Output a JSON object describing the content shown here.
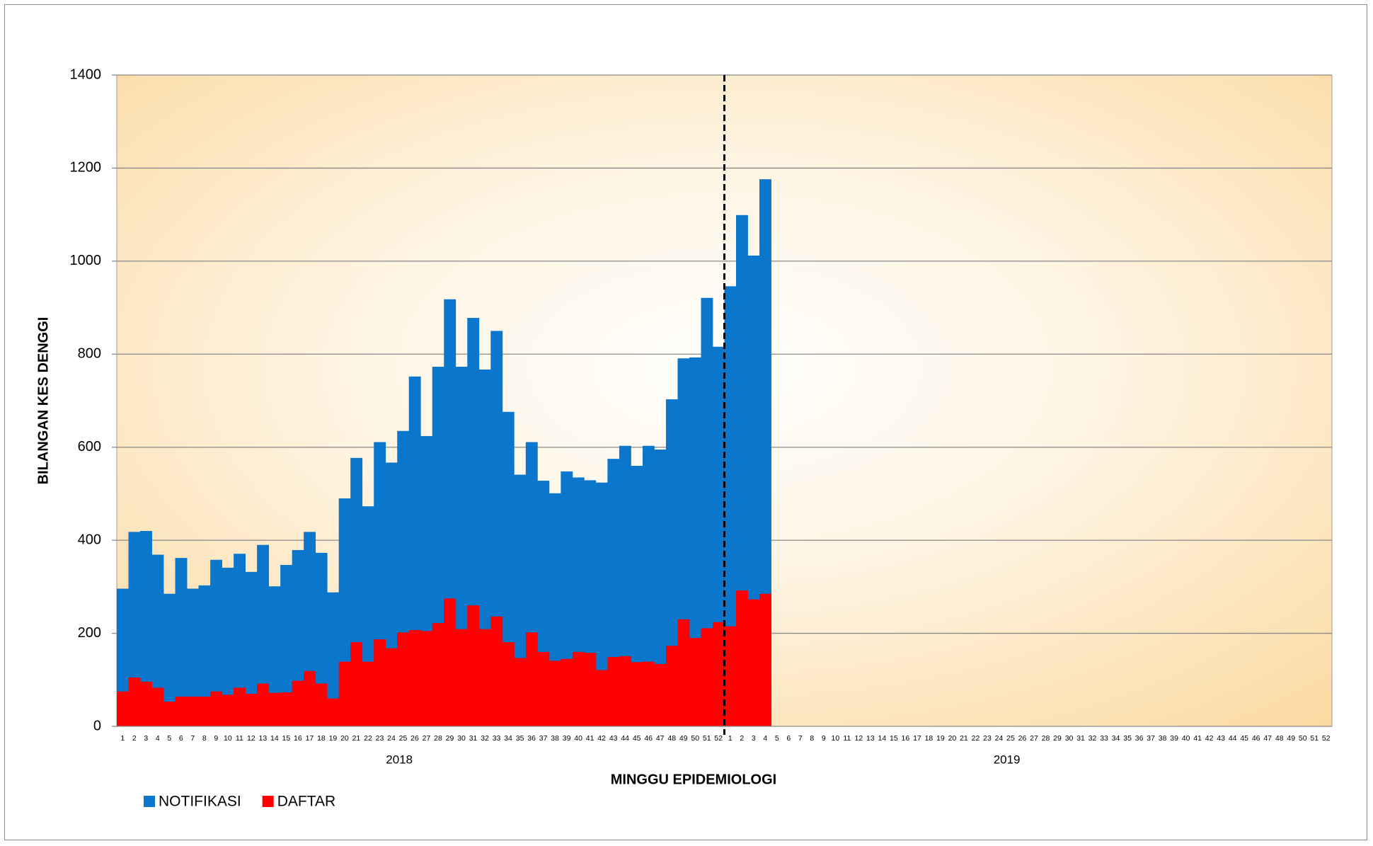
{
  "chart_data": {
    "type": "bar",
    "ylabel": "BILANGAN KES DENGGI",
    "xlabel": "MINGGU EPIDEMIOLOGI",
    "x_groups": [
      "2018",
      "2019"
    ],
    "categories": [
      "1",
      "2",
      "3",
      "4",
      "5",
      "6",
      "7",
      "8",
      "9",
      "10",
      "11",
      "12",
      "13",
      "14",
      "15",
      "16",
      "17",
      "18",
      "19",
      "20",
      "21",
      "22",
      "23",
      "24",
      "25",
      "26",
      "27",
      "28",
      "29",
      "30",
      "31",
      "32",
      "33",
      "34",
      "35",
      "36",
      "37",
      "38",
      "39",
      "40",
      "41",
      "42",
      "43",
      "44",
      "45",
      "46",
      "47",
      "48",
      "49",
      "50",
      "51",
      "52",
      "1",
      "2",
      "3",
      "4",
      "5",
      "6",
      "7",
      "8",
      "9",
      "10",
      "11",
      "12",
      "13",
      "14",
      "15",
      "16",
      "17",
      "18",
      "19",
      "20",
      "21",
      "22",
      "23",
      "24",
      "25",
      "26",
      "27",
      "28",
      "29",
      "30",
      "31",
      "32",
      "33",
      "34",
      "35",
      "36",
      "37",
      "38",
      "39",
      "40",
      "41",
      "42",
      "43",
      "44",
      "45",
      "46",
      "47",
      "48",
      "49",
      "50",
      "51",
      "52"
    ],
    "series": [
      {
        "name": "NOTIFIKASI",
        "color": "#0a77cc",
        "values": [
          296,
          418,
          420,
          369,
          285,
          362,
          296,
          303,
          358,
          341,
          371,
          332,
          390,
          301,
          347,
          379,
          418,
          373,
          288,
          490,
          577,
          473,
          611,
          567,
          635,
          752,
          624,
          773,
          918,
          773,
          878,
          767,
          850,
          676,
          541,
          611,
          528,
          501,
          548,
          535,
          529,
          524,
          575,
          603,
          560,
          603,
          595,
          703,
          791,
          793,
          921,
          816,
          946,
          1099,
          1012,
          1176,
          null,
          null,
          null,
          null,
          null,
          null,
          null,
          null,
          null,
          null,
          null,
          null,
          null,
          null,
          null,
          null,
          null,
          null,
          null,
          null,
          null,
          null,
          null,
          null,
          null,
          null,
          null,
          null,
          null,
          null,
          null,
          null,
          null,
          null,
          null,
          null,
          null,
          null,
          null,
          null,
          null,
          null,
          null,
          null,
          null,
          null,
          null,
          null
        ]
      },
      {
        "name": "DAFTAR",
        "color": "#ff0000",
        "values": [
          75,
          105,
          96,
          83,
          53,
          64,
          64,
          64,
          75,
          68,
          83,
          70,
          92,
          72,
          73,
          98,
          119,
          92,
          60,
          139,
          181,
          139,
          187,
          168,
          202,
          207,
          205,
          222,
          275,
          209,
          260,
          209,
          236,
          181,
          147,
          202,
          160,
          141,
          145,
          160,
          158,
          121,
          149,
          151,
          138,
          139,
          134,
          173,
          230,
          190,
          211,
          224,
          215,
          292,
          273,
          285,
          null,
          null,
          null,
          null,
          null,
          null,
          null,
          null,
          null,
          null,
          null,
          null,
          null,
          null,
          null,
          null,
          null,
          null,
          null,
          null,
          null,
          null,
          null,
          null,
          null,
          null,
          null,
          null,
          null,
          null,
          null,
          null,
          null,
          null,
          null,
          null,
          null,
          null,
          null,
          null,
          null,
          null,
          null,
          null,
          null,
          null,
          null,
          null
        ]
      }
    ],
    "ylim": [
      0,
      1400
    ],
    "yticks": [
      0,
      200,
      400,
      600,
      800,
      1000,
      1200,
      1400
    ],
    "grid": true
  }
}
